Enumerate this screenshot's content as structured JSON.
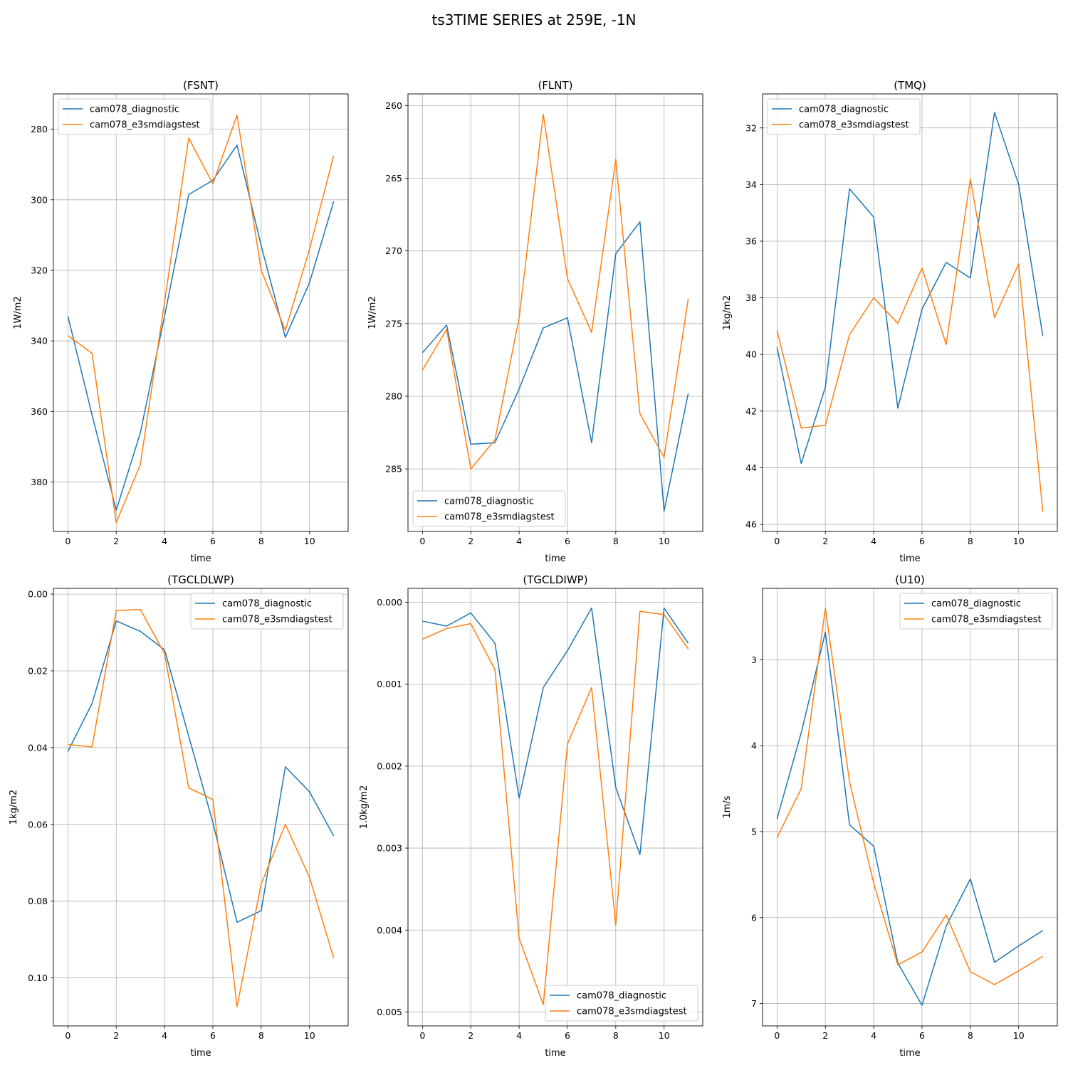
{
  "figure": {
    "suptitle": "ts3TIME SERIES at 259E, -1N",
    "colors": {
      "cam078_diagnostic": "#1f77b4",
      "cam078_e3smdiagstest": "#ff7f0e"
    }
  },
  "chart_data": [
    {
      "type": "line",
      "title": "(FSNT)",
      "xlabel": "time",
      "ylabel": "1W/m2",
      "x": [
        0,
        1,
        2,
        3,
        4,
        5,
        6,
        7,
        8,
        9,
        10,
        11
      ],
      "xlim": [
        -0.6,
        11.6
      ],
      "xticks": [
        0,
        2,
        4,
        6,
        8,
        10
      ],
      "ylim": [
        394,
        270
      ],
      "yinverted": true,
      "yticks": [
        280,
        300,
        320,
        340,
        360,
        380
      ],
      "yticklabels": [
        "280",
        "300",
        "320",
        "340",
        "360",
        "380"
      ],
      "grid": true,
      "legend_loc": "upper-left",
      "series": [
        {
          "name": "cam078_diagnostic",
          "values": [
            333.0,
            361.0,
            388.0,
            366.0,
            333.0,
            298.5,
            294.5,
            284.5,
            313.0,
            339.0,
            323.5,
            300.5
          ]
        },
        {
          "name": "cam078_e3smdiagstest",
          "values": [
            338.5,
            343.5,
            391.5,
            375.0,
            329.0,
            282.5,
            295.5,
            276.0,
            320.0,
            337.0,
            314.0,
            287.5
          ]
        }
      ]
    },
    {
      "type": "line",
      "title": "(FLNT)",
      "xlabel": "time",
      "ylabel": "1W/m2",
      "x": [
        0,
        1,
        2,
        3,
        4,
        5,
        6,
        7,
        8,
        9,
        10,
        11
      ],
      "xlim": [
        -0.6,
        11.6
      ],
      "xticks": [
        0,
        2,
        4,
        6,
        8,
        10
      ],
      "ylim": [
        289.3,
        259.2
      ],
      "yinverted": true,
      "yticks": [
        260,
        265,
        270,
        275,
        280,
        285
      ],
      "yticklabels": [
        "260",
        "265",
        "270",
        "275",
        "280",
        "285"
      ],
      "grid": true,
      "legend_loc": "lower-left",
      "series": [
        {
          "name": "cam078_diagnostic",
          "values": [
            277.0,
            275.1,
            283.3,
            283.2,
            279.5,
            275.3,
            274.6,
            283.2,
            270.2,
            268.0,
            287.9,
            279.8
          ]
        },
        {
          "name": "cam078_e3smdiagstest",
          "values": [
            278.2,
            275.4,
            285.0,
            283.0,
            274.6,
            260.6,
            271.9,
            275.6,
            263.7,
            281.2,
            284.2,
            273.3
          ]
        }
      ]
    },
    {
      "type": "line",
      "title": "(TMQ)",
      "xlabel": "time",
      "ylabel": "1kg/m2",
      "x": [
        0,
        1,
        2,
        3,
        4,
        5,
        6,
        7,
        8,
        9,
        10,
        11
      ],
      "xlim": [
        -0.6,
        11.6
      ],
      "xticks": [
        0,
        2,
        4,
        6,
        8,
        10
      ],
      "ylim": [
        46.25,
        30.8
      ],
      "yinverted": true,
      "yticks": [
        32,
        34,
        36,
        38,
        40,
        42,
        44,
        46
      ],
      "yticklabels": [
        "32",
        "34",
        "36",
        "38",
        "40",
        "42",
        "44",
        "46"
      ],
      "grid": true,
      "legend_loc": "upper-left",
      "series": [
        {
          "name": "cam078_diagnostic",
          "values": [
            39.75,
            43.85,
            41.15,
            34.15,
            35.15,
            41.9,
            38.4,
            36.75,
            37.3,
            31.45,
            34.0,
            39.35
          ]
        },
        {
          "name": "cam078_e3smdiagstest",
          "values": [
            39.15,
            42.6,
            42.5,
            39.3,
            38.0,
            38.9,
            36.95,
            39.65,
            33.8,
            38.7,
            36.8,
            45.55
          ]
        }
      ]
    },
    {
      "type": "line",
      "title": "(TGCLDLWP)",
      "xlabel": "time",
      "ylabel": "1kg/m2",
      "x": [
        0,
        1,
        2,
        3,
        4,
        5,
        6,
        7,
        8,
        9,
        10,
        11
      ],
      "xlim": [
        -0.6,
        11.6
      ],
      "xticks": [
        0,
        2,
        4,
        6,
        8,
        10
      ],
      "ylim": [
        0.1125,
        -0.0015
      ],
      "yinverted": true,
      "yticks": [
        0.0,
        0.02,
        0.04,
        0.06,
        0.08,
        0.1
      ],
      "yticklabels": [
        "0.00",
        "0.02",
        "0.04",
        "0.06",
        "0.08",
        "0.10"
      ],
      "grid": true,
      "legend_loc": "upper-right",
      "series": [
        {
          "name": "cam078_diagnostic",
          "values": [
            0.041,
            0.0285,
            0.007,
            0.0097,
            0.0145,
            0.037,
            0.0595,
            0.0855,
            0.0825,
            0.045,
            0.0515,
            0.063
          ]
        },
        {
          "name": "cam078_e3smdiagstest",
          "values": [
            0.0392,
            0.0398,
            0.0043,
            0.004,
            0.0155,
            0.0505,
            0.0535,
            0.1075,
            0.0755,
            0.06,
            0.0738,
            0.0948
          ]
        }
      ]
    },
    {
      "type": "line",
      "title": "(TGCLDIWP)",
      "xlabel": "time",
      "ylabel": "1.0kg/m2",
      "x": [
        0,
        1,
        2,
        3,
        4,
        5,
        6,
        7,
        8,
        9,
        10,
        11
      ],
      "xlim": [
        -0.6,
        11.6
      ],
      "xticks": [
        0,
        2,
        4,
        6,
        8,
        10
      ],
      "ylim": [
        0.00517,
        -0.00017
      ],
      "yinverted": true,
      "yticks": [
        0.0,
        0.001,
        0.002,
        0.003,
        0.004,
        0.005
      ],
      "yticklabels": [
        "0.000",
        "0.001",
        "0.002",
        "0.003",
        "0.004",
        "0.005"
      ],
      "grid": true,
      "legend_loc": "lower-right",
      "series": [
        {
          "name": "cam078_diagnostic",
          "values": [
            0.00023,
            0.00029,
            0.00013,
            0.0005,
            0.00239,
            0.00104,
            0.00059,
            7e-05,
            0.00226,
            0.00308,
            7e-05,
            0.0005
          ]
        },
        {
          "name": "cam078_e3smdiagstest",
          "values": [
            0.00045,
            0.00032,
            0.00026,
            0.00082,
            0.0041,
            0.00491,
            0.00173,
            0.00104,
            0.00394,
            0.00011,
            0.00015,
            0.00057
          ]
        }
      ]
    },
    {
      "type": "line",
      "title": "(U10)",
      "xlabel": "time",
      "ylabel": "1m/s",
      "x": [
        0,
        1,
        2,
        3,
        4,
        5,
        6,
        7,
        8,
        9,
        10,
        11
      ],
      "xlim": [
        -0.6,
        11.6
      ],
      "xticks": [
        0,
        2,
        4,
        6,
        8,
        10
      ],
      "ylim": [
        7.26,
        2.17
      ],
      "yinverted": true,
      "yticks": [
        3,
        4,
        5,
        6,
        7
      ],
      "yticklabels": [
        "3",
        "4",
        "5",
        "6",
        "7"
      ],
      "grid": true,
      "legend_loc": "upper-right",
      "series": [
        {
          "name": "cam078_diagnostic",
          "values": [
            4.85,
            3.85,
            2.68,
            4.92,
            5.17,
            6.53,
            7.02,
            6.1,
            5.55,
            6.52,
            6.33,
            6.15
          ]
        },
        {
          "name": "cam078_e3smdiagstest",
          "values": [
            5.07,
            4.5,
            2.4,
            4.42,
            5.6,
            6.55,
            6.4,
            5.97,
            6.63,
            6.78,
            6.62,
            6.45
          ]
        }
      ]
    }
  ]
}
